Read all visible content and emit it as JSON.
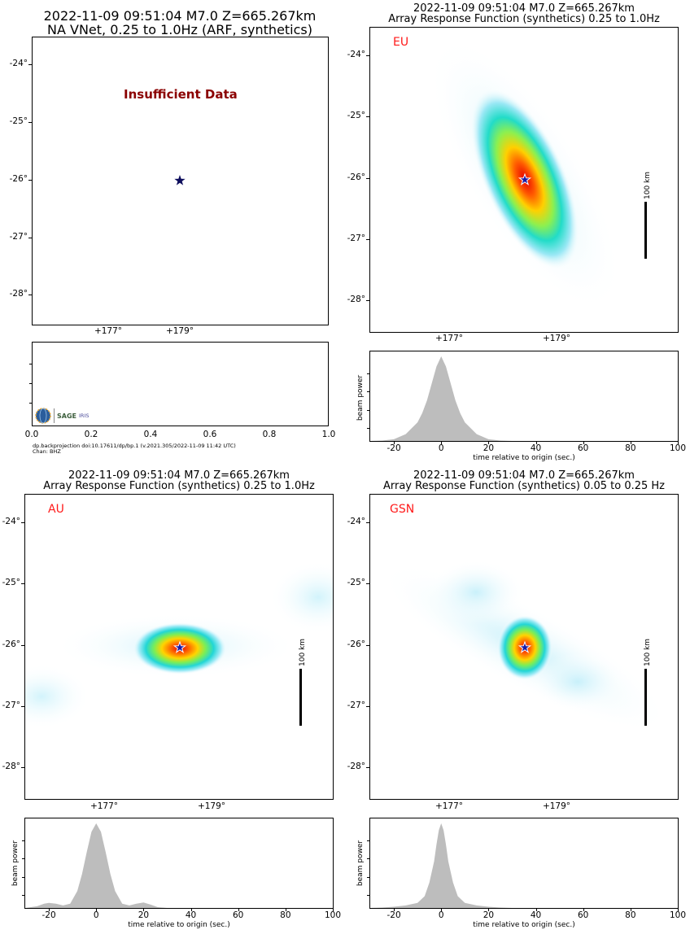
{
  "panels": {
    "vnet": {
      "title_line1": "2022-11-09 09:51:04 M7.0 Z=665.267km",
      "title_line2": "NA VNet, 0.25 to 1.0Hz (ARF, synthetics)",
      "message": "Insufficient Data",
      "y_ticks": [
        "-24°",
        "-25°",
        "-26°",
        "-27°",
        "-28°"
      ],
      "x_ticks": [
        "+177°",
        "+179°"
      ],
      "bottom_x_ticks": [
        "0.0",
        "0.2",
        "0.4",
        "0.6",
        "0.8",
        "1.0"
      ],
      "footer_line1": "dp.backprojection doi:10.17611/dp/bp.1 (v.2021.305/2022-11-09 11:42 UTC)",
      "footer_line2": "Chan: BHZ",
      "logo_text": "SAGE",
      "logo_subtext": "IRIS"
    },
    "eu": {
      "title_line1": "2022-11-09 09:51:04 M7.0 Z=665.267km",
      "title_line2": "Array Response Function (synthetics) 0.25 to 1.0Hz",
      "network": "EU",
      "scale_label": "100 km",
      "y_ticks": [
        "-24°",
        "-25°",
        "-26°",
        "-27°",
        "-28°"
      ],
      "x_ticks": [
        "+177°",
        "+179°"
      ]
    },
    "au": {
      "title_line1": "2022-11-09 09:51:04 M7.0 Z=665.267km",
      "title_line2": "Array Response Function (synthetics) 0.25 to 1.0Hz",
      "network": "AU",
      "scale_label": "100 km",
      "y_ticks": [
        "-24°",
        "-25°",
        "-26°",
        "-27°",
        "-28°"
      ],
      "x_ticks": [
        "+177°",
        "+179°"
      ]
    },
    "gsn": {
      "title_line1": "2022-11-09 09:51:04 M7.0 Z=665.267km",
      "title_line2": "Array Response Function (synthetics) 0.05 to 0.25 Hz",
      "network": "GSN",
      "scale_label": "100 km",
      "y_ticks": [
        "-24°",
        "-25°",
        "-26°",
        "-27°",
        "-28°"
      ],
      "x_ticks": [
        "+177°",
        "+179°"
      ]
    }
  },
  "chart_data": [
    {
      "type": "area",
      "panel": "EU",
      "xlabel": "time relative to origin (sec.)",
      "ylabel": "beam power",
      "xlim": [
        -30,
        100
      ],
      "x_ticks": [
        "-20",
        "0",
        "20",
        "40",
        "60",
        "80",
        "100"
      ],
      "x": [
        -30,
        -25,
        -20,
        -15,
        -10,
        -8,
        -6,
        -4,
        -2,
        0,
        2,
        4,
        6,
        8,
        10,
        15,
        20,
        25,
        30,
        40,
        60,
        80,
        100
      ],
      "values": [
        0,
        0.005,
        0.02,
        0.08,
        0.22,
        0.33,
        0.48,
        0.68,
        0.88,
        1.0,
        0.88,
        0.68,
        0.48,
        0.33,
        0.22,
        0.08,
        0.02,
        0.005,
        0,
        0,
        0,
        0,
        0
      ],
      "color": "#bdbdbd"
    },
    {
      "type": "area",
      "panel": "AU",
      "xlabel": "time relative to origin (sec.)",
      "ylabel": "beam power",
      "xlim": [
        -30,
        100
      ],
      "x_ticks": [
        "-20",
        "0",
        "20",
        "40",
        "60",
        "80",
        "100"
      ],
      "x": [
        -30,
        -25,
        -22,
        -20,
        -17,
        -14,
        -11,
        -8,
        -6,
        -4,
        -2,
        0,
        2,
        4,
        6,
        8,
        11,
        14,
        17,
        20,
        23,
        26,
        30,
        40,
        60,
        80,
        100
      ],
      "values": [
        0,
        0.02,
        0.05,
        0.06,
        0.05,
        0.03,
        0.05,
        0.2,
        0.4,
        0.66,
        0.9,
        1.0,
        0.9,
        0.66,
        0.4,
        0.2,
        0.05,
        0.03,
        0.05,
        0.065,
        0.04,
        0.01,
        0,
        0,
        0,
        0,
        0
      ],
      "color": "#bdbdbd"
    },
    {
      "type": "area",
      "panel": "GSN",
      "xlabel": "time relative to origin (sec.)",
      "ylabel": "beam power",
      "xlim": [
        -30,
        100
      ],
      "x_ticks": [
        "-20",
        "0",
        "20",
        "40",
        "60",
        "80",
        "100"
      ],
      "x": [
        -30,
        -25,
        -20,
        -15,
        -10,
        -7,
        -5,
        -3,
        -2,
        -1,
        0,
        1,
        2,
        3,
        5,
        7,
        10,
        15,
        20,
        25,
        30,
        40,
        60,
        80,
        100
      ],
      "values": [
        0,
        0.005,
        0.015,
        0.03,
        0.06,
        0.14,
        0.3,
        0.55,
        0.75,
        0.92,
        1.0,
        0.92,
        0.75,
        0.55,
        0.3,
        0.14,
        0.06,
        0.03,
        0.015,
        0.005,
        0,
        0,
        0,
        0,
        0
      ],
      "color": "#bdbdbd"
    },
    {
      "type": "area",
      "panel": "NA VNet",
      "xlim": [
        0,
        1.0
      ],
      "x_ticks": [
        "0.0",
        "0.2",
        "0.4",
        "0.6",
        "0.8",
        "1.0"
      ],
      "x": [],
      "values": []
    }
  ]
}
